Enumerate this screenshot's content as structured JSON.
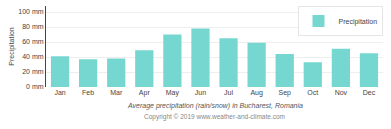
{
  "chart_data": {
    "type": "bar",
    "title": "Average precipitation (rain/snow) in Bucharest, Romania",
    "ylabel": "Precipitation",
    "categories": [
      "Jan",
      "Feb",
      "Mar",
      "Apr",
      "May",
      "Jun",
      "Jul",
      "Aug",
      "Sep",
      "Oct",
      "Nov",
      "Dec"
    ],
    "series": [
      {
        "name": "Precipitation",
        "color": "#76d7d0",
        "values": [
          41,
          37,
          38,
          49,
          70,
          78,
          65,
          59,
          44,
          33,
          51,
          45
        ]
      }
    ],
    "ylim": [
      0,
      108
    ],
    "yticks": [
      {
        "value": 0,
        "label": "0 mm"
      },
      {
        "value": 20,
        "label": "20 mm"
      },
      {
        "value": 40,
        "label": "40 mm"
      },
      {
        "value": 60,
        "label": "60 mm"
      },
      {
        "value": 80,
        "label": "80 mm"
      },
      {
        "value": 100,
        "label": "100 mm"
      }
    ],
    "grid": true,
    "legend": "upper right",
    "annotations": [
      "Copyright © 2019 www.weather-and-climate.com"
    ]
  }
}
